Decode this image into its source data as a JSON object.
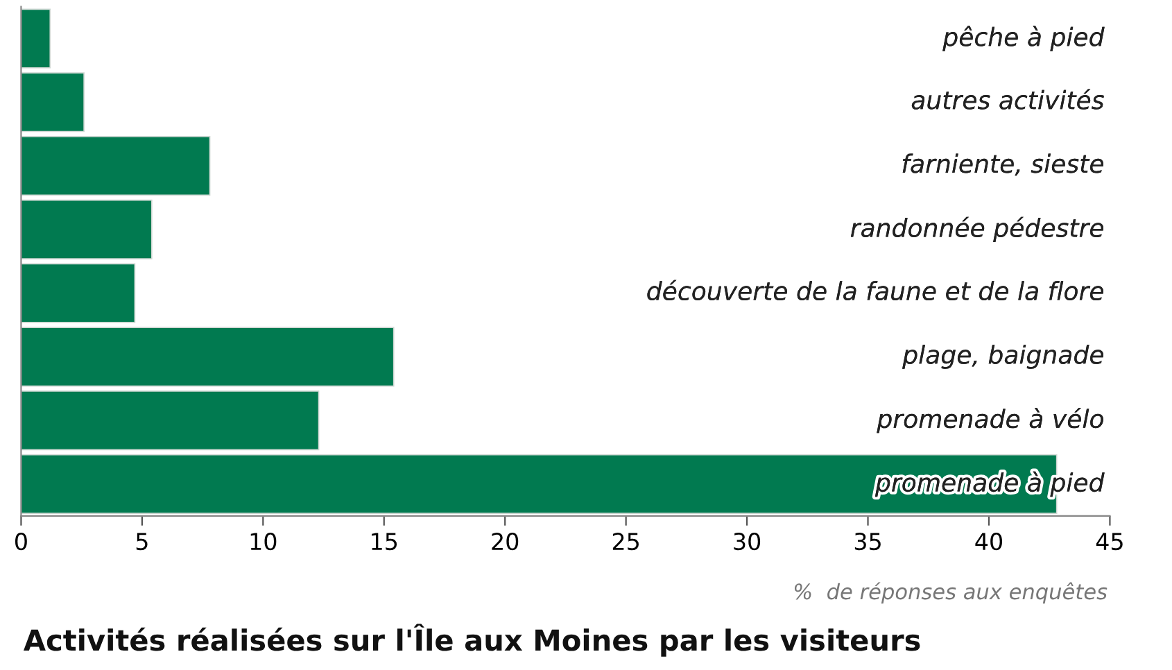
{
  "chart_data": {
    "type": "bar",
    "orientation": "horizontal",
    "title": "Activités réalisées sur l'Île aux Moines par les visiteurs",
    "xlabel": "%  de réponses aux enquêtes",
    "categories": [
      "pêche à pied",
      "autres activités",
      "farniente, sieste",
      "randonnée pédestre",
      "découverte de la faune et de la flore",
      "plage, baignade",
      "promenade à vélo",
      "promenade à pied"
    ],
    "values": [
      1.2,
      2.6,
      7.8,
      5.4,
      4.7,
      15.4,
      12.3,
      42.8
    ],
    "color": "#017a50",
    "xlim": [
      0,
      45
    ],
    "xticks": [
      0,
      5,
      10,
      15,
      20,
      25,
      30,
      35,
      40,
      45
    ],
    "grid": false,
    "legend": false
  }
}
